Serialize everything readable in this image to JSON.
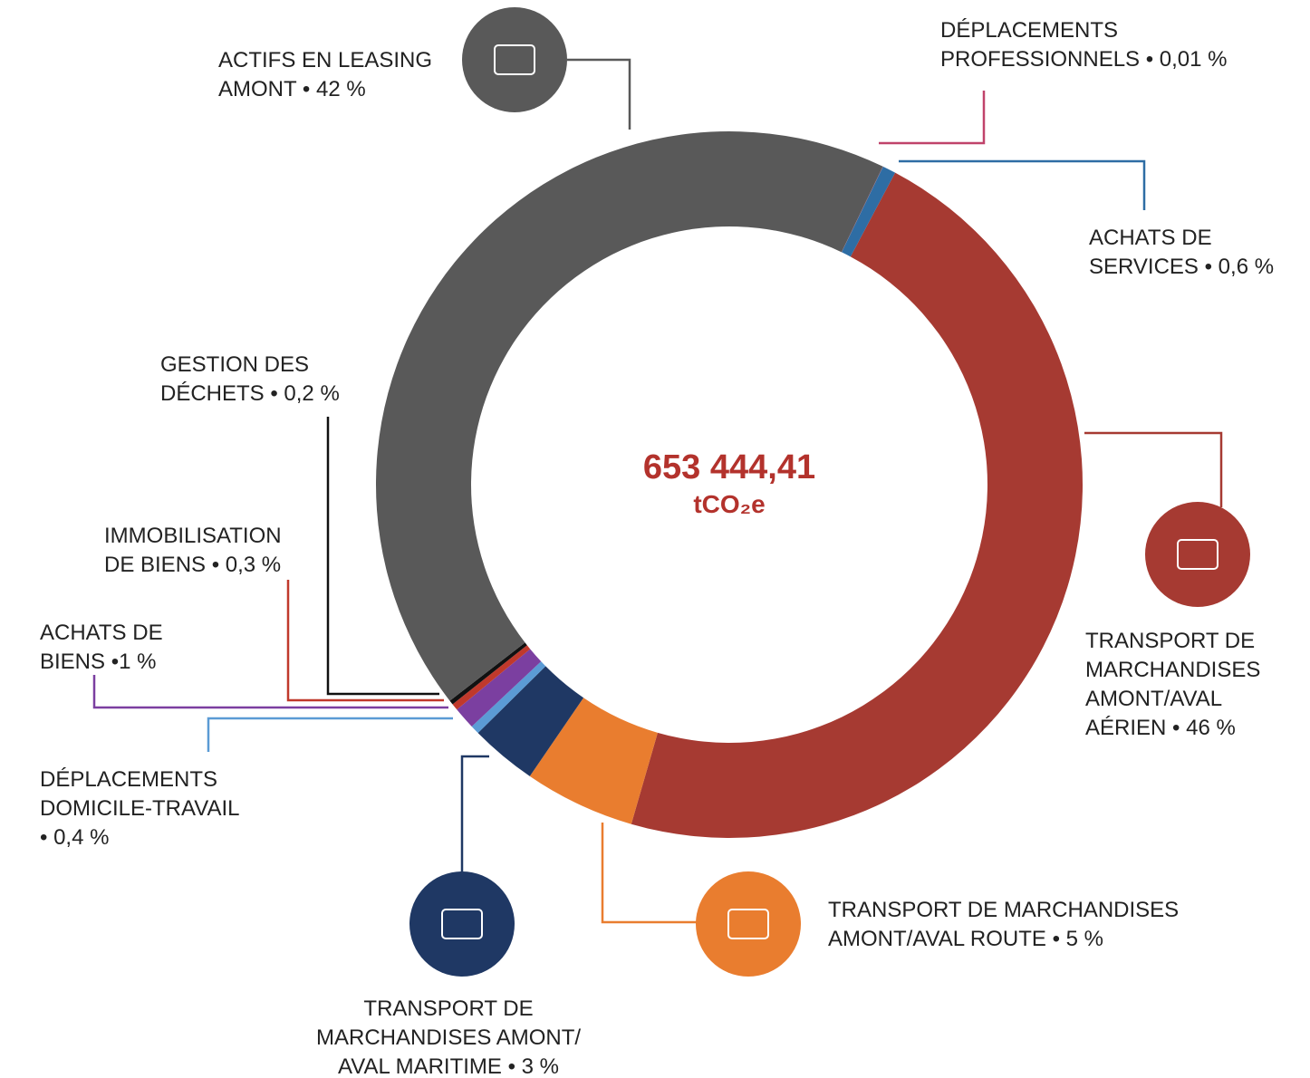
{
  "chart_data": {
    "type": "donut",
    "center_value": "653 444,41",
    "center_unit": "tCO₂e",
    "categories": [
      [
        "TRANSPORT DE",
        "MARCHANDISES",
        "AMONT/AVAL",
        "AÉRIEN • 46 %"
      ],
      [
        "TRANSPORT DE MARCHANDISES",
        "AMONT/AVAL ROUTE • 5 %"
      ],
      [
        "TRANSPORT DE",
        "MARCHANDISES AMONT/",
        "AVAL MARITIME • 3 %"
      ],
      [
        "DÉPLACEMENTS",
        "DOMICILE-TRAVAIL",
        "• 0,4 %"
      ],
      [
        "ACHATS DE",
        "BIENS •1 %"
      ],
      [
        "IMMOBILISATION",
        "DE BIENS • 0,3 %"
      ],
      [
        "GESTION DES",
        "DÉCHETS • 0,2 %"
      ],
      [
        "ACTIFS EN LEASING",
        "AMONT • 42 %"
      ],
      [
        "DÉPLACEMENTS",
        "PROFESSIONNELS • 0,01 %"
      ],
      [
        "ACHATS DE",
        "SERVICES • 0,6 %"
      ]
    ],
    "values": [
      46,
      5,
      3,
      0.4,
      1,
      0.3,
      0.2,
      42,
      0.01,
      0.6
    ],
    "colors": [
      "#a63a32",
      "#e97d2f",
      "#1f3864",
      "#5b9bd5",
      "#7b3fa0",
      "#c0392b",
      "#111111",
      "#595959",
      "#c0436a",
      "#2e6da4"
    ]
  }
}
